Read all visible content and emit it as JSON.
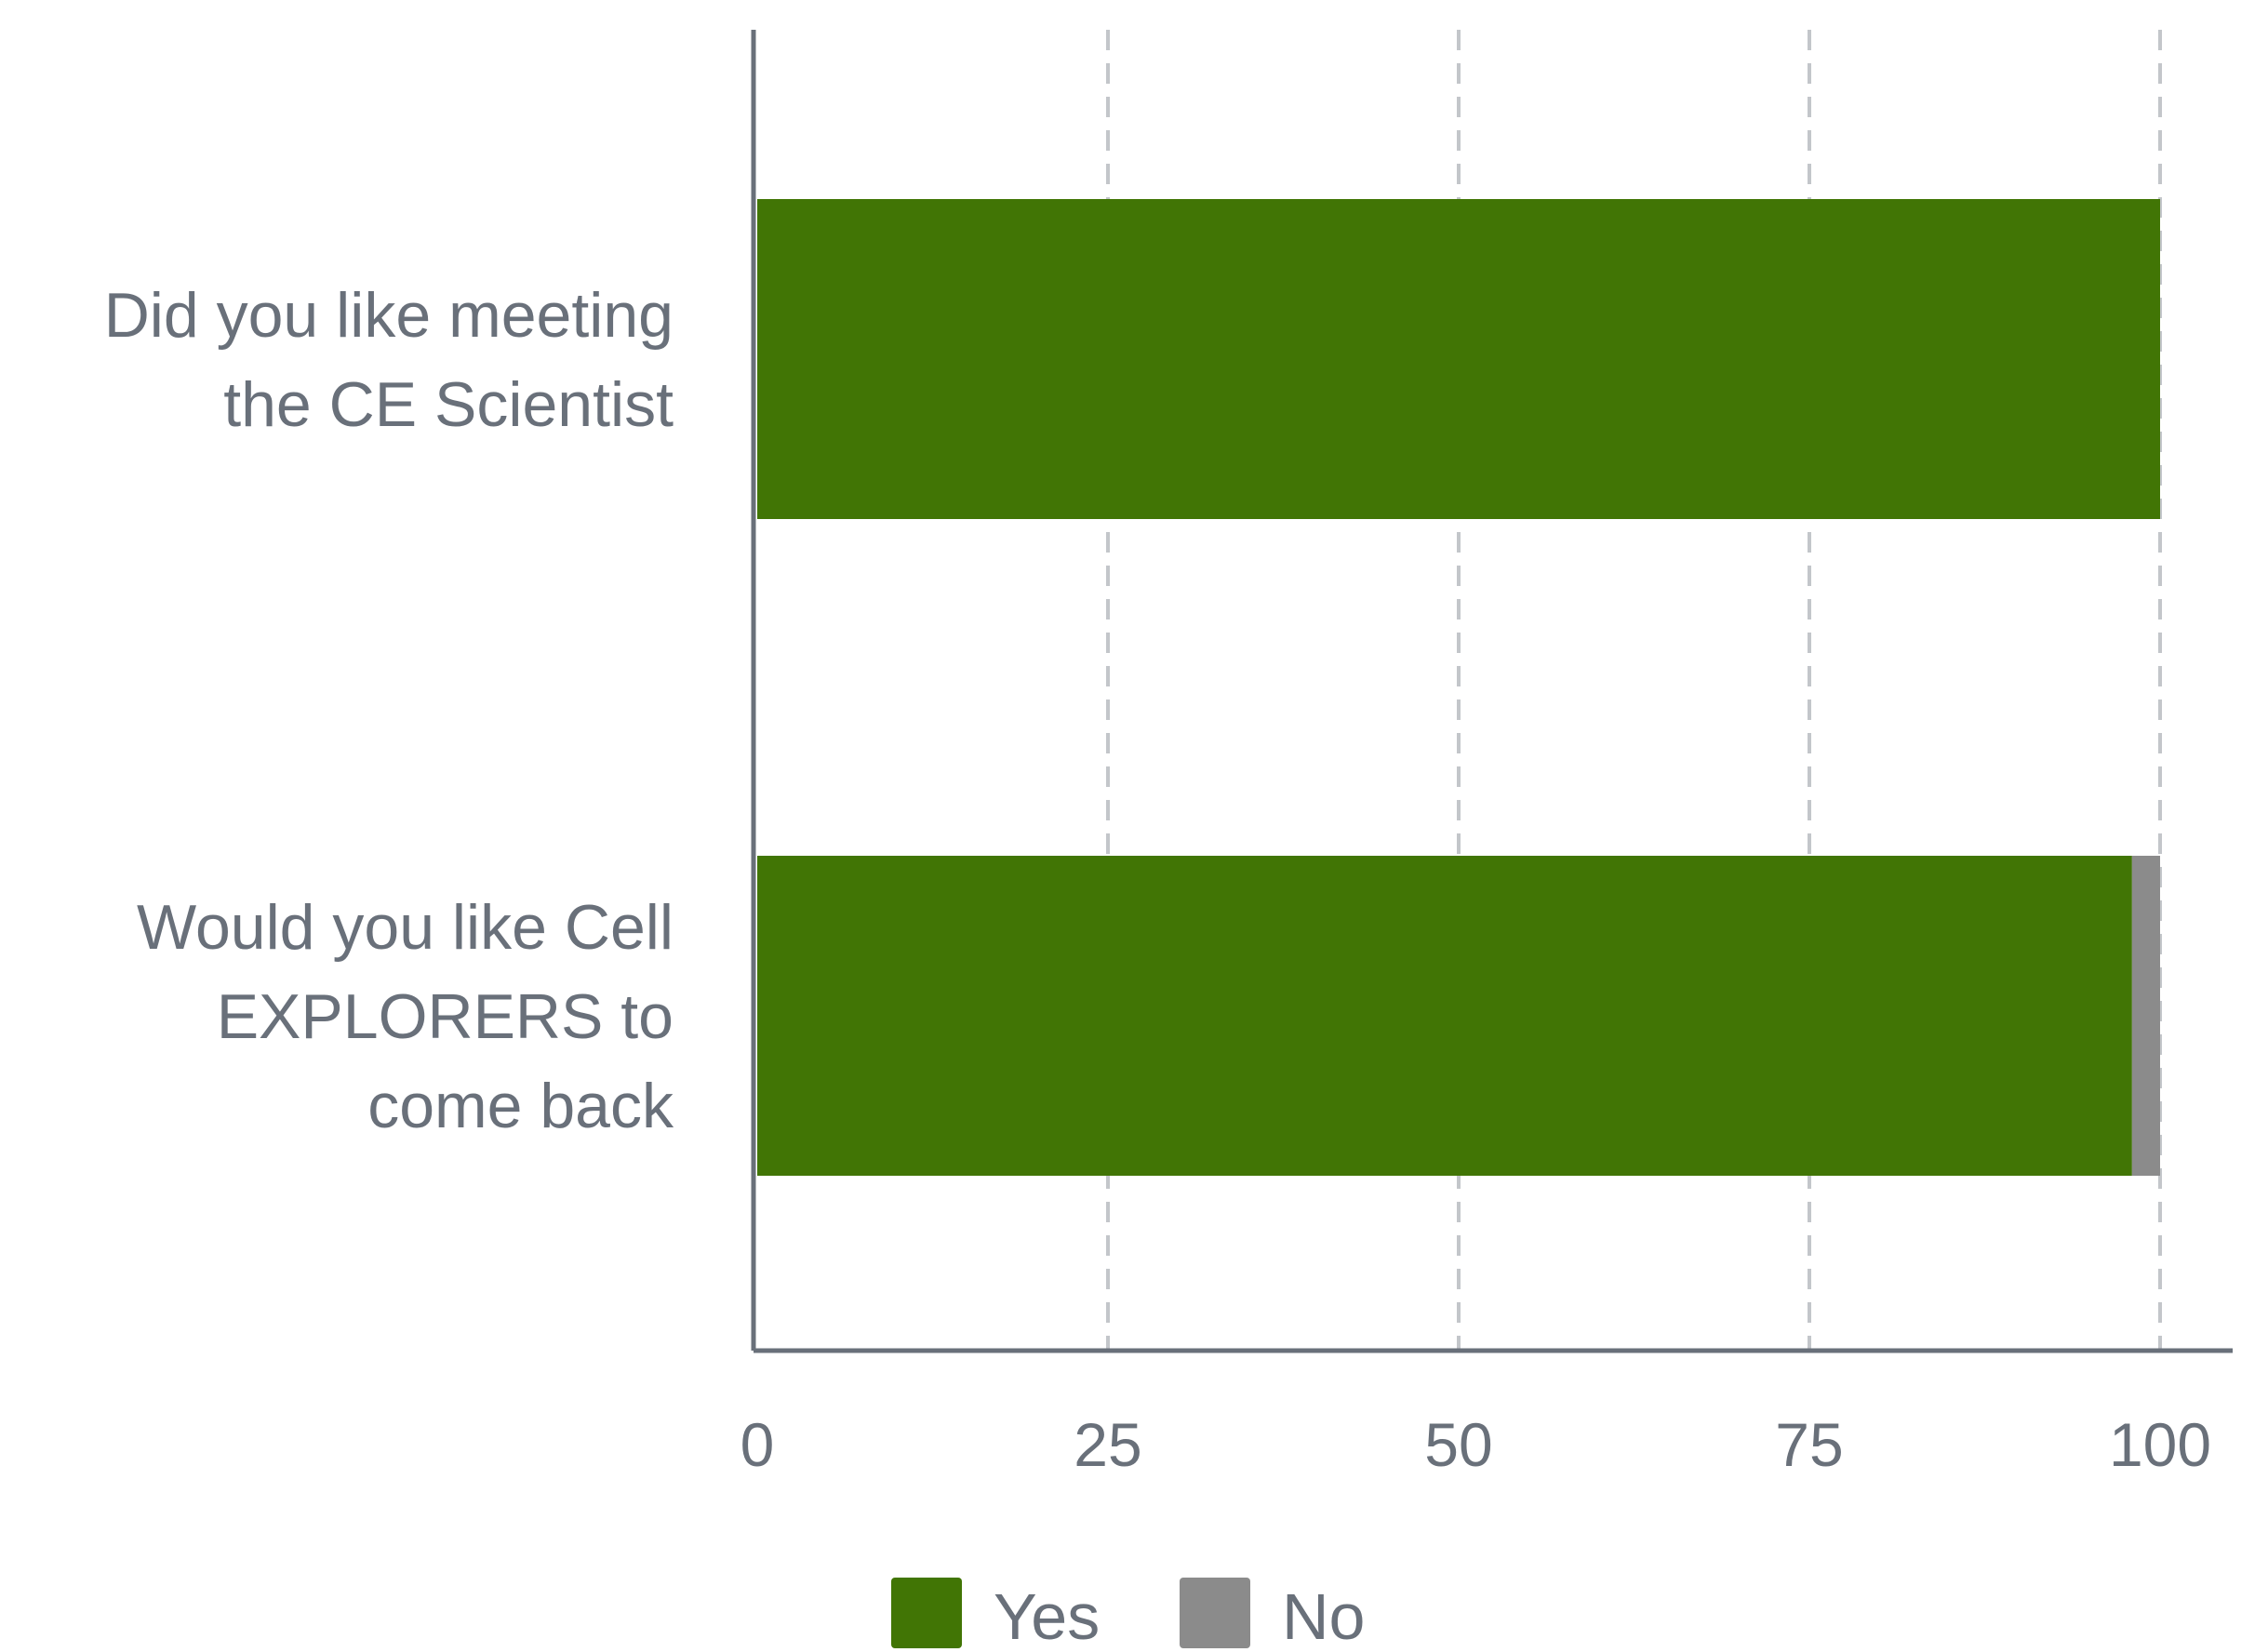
{
  "chart_data": {
    "type": "bar",
    "orientation": "horizontal",
    "stacked": true,
    "categories": [
      [
        "Did you like meeting",
        "the CE Scientist"
      ],
      [
        "Would you like Cell",
        "EXPLORERS to",
        "come back"
      ]
    ],
    "series": [
      {
        "name": "Yes",
        "color": "#417505",
        "values": [
          100,
          98
        ]
      },
      {
        "name": "No",
        "color": "#8b8b8b",
        "values": [
          0,
          2
        ]
      }
    ],
    "xticks": [
      "0",
      "25",
      "50",
      "75",
      "100"
    ],
    "xlim": [
      0,
      105
    ],
    "grid": true,
    "legend_position": "bottom-center"
  }
}
